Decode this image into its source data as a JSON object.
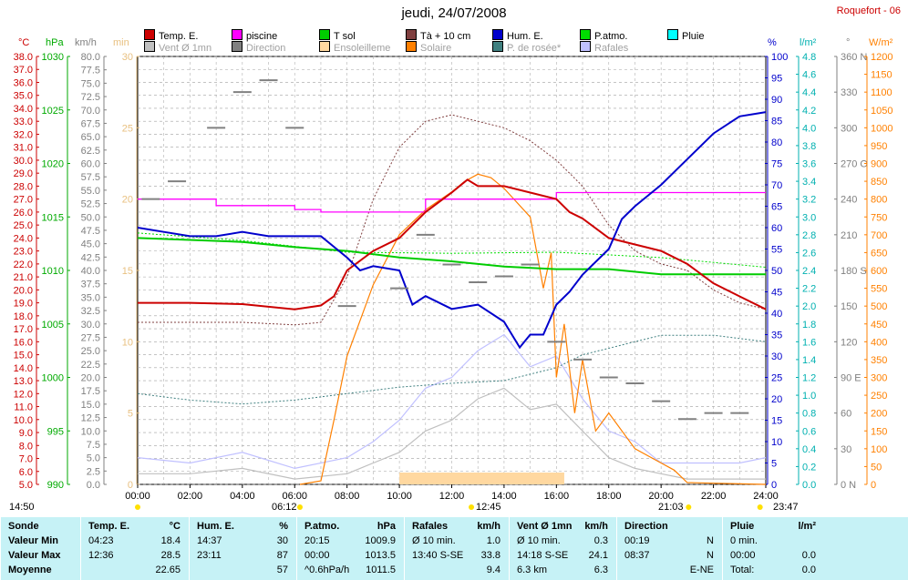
{
  "header": {
    "title": "jeudi, 24/07/2008",
    "station": "Roquefort - 06"
  },
  "legend": [
    {
      "label": "Temp. E.",
      "color": "#cc0000"
    },
    {
      "label": "piscine",
      "color": "#ff00ff"
    },
    {
      "label": "T sol",
      "color": "#00cc00"
    },
    {
      "label": "Tà + 10 cm",
      "color": "#804040"
    },
    {
      "label": "Hum. E.",
      "color": "#0000cc"
    },
    {
      "label": "P.atmo.",
      "color": "#00dd00"
    },
    {
      "label": "Pluie",
      "color": "#00ffff"
    },
    {
      "label": "Vent Ø 1mn",
      "color": "#c0c0c0"
    },
    {
      "label": "Direction",
      "color": "#808080"
    },
    {
      "label": "Ensoleilleme",
      "color": "#ffd8a0"
    },
    {
      "label": "Solaire",
      "color": "#ff8000"
    },
    {
      "label": "P. de rosée*",
      "color": "#408080"
    },
    {
      "label": "Rafales",
      "color": "#c0c0ff"
    }
  ],
  "units": {
    "temp": "°C",
    "press": "hPa",
    "wind": "km/h",
    "sun": "min",
    "hum": "%",
    "rain": "l/m²",
    "dir": "°",
    "solar": "W/m²"
  },
  "axes": {
    "temp": [
      "38.0",
      "37.0",
      "36.0",
      "35.0",
      "34.0",
      "33.0",
      "32.0",
      "31.0",
      "30.0",
      "29.0",
      "28.0",
      "27.0",
      "26.0",
      "25.0",
      "24.0",
      "23.0",
      "22.0",
      "21.0",
      "20.0",
      "19.0",
      "18.0",
      "17.0",
      "16.0",
      "15.0",
      "14.0",
      "13.0",
      "12.0",
      "11.0",
      "10.0",
      "9.0",
      "8.0",
      "7.0",
      "6.0",
      "5.0"
    ],
    "press": [
      "1030",
      "1025",
      "1020",
      "1015",
      "1010",
      "1005",
      "1000",
      "995",
      "990"
    ],
    "wind": [
      "80.0",
      "77.5",
      "75.0",
      "72.5",
      "70.0",
      "67.5",
      "65.0",
      "62.5",
      "60.0",
      "57.5",
      "55.0",
      "52.5",
      "50.0",
      "47.5",
      "45.0",
      "42.5",
      "40.0",
      "37.5",
      "35.0",
      "32.5",
      "30.0",
      "27.5",
      "25.0",
      "22.5",
      "20.0",
      "17.5",
      "15.0",
      "12.5",
      "10.0",
      "7.5",
      "5.0",
      "2.5",
      "0.0"
    ],
    "sun": [
      "30",
      "25",
      "20",
      "15",
      "10",
      "5",
      "0"
    ],
    "hum": [
      "100",
      "95",
      "90",
      "85",
      "80",
      "75",
      "70",
      "65",
      "60",
      "55",
      "50",
      "45",
      "40",
      "35",
      "30",
      "25",
      "20",
      "15",
      "10",
      "5",
      "0"
    ],
    "rain": [
      "4.8",
      "4.6",
      "4.4",
      "4.2",
      "4.0",
      "3.8",
      "3.6",
      "3.4",
      "3.2",
      "3.0",
      "2.8",
      "2.6",
      "2.4",
      "2.2",
      "2.0",
      "1.8",
      "1.6",
      "1.4",
      "1.2",
      "1.0",
      "0.8",
      "0.6",
      "0.4",
      "0.2",
      "0.0"
    ],
    "dir": [
      "360 N",
      "330",
      "300",
      "270 O",
      "240",
      "210",
      "180 S",
      "150",
      "120",
      "90 E",
      "60",
      "30",
      "0 N"
    ],
    "solar": [
      "1200",
      "1150",
      "1100",
      "1050",
      "1000",
      "950",
      "900",
      "850",
      "800",
      "750",
      "700",
      "650",
      "600",
      "550",
      "500",
      "450",
      "400",
      "350",
      "300",
      "250",
      "200",
      "150",
      "100",
      "50",
      "0"
    ],
    "time": [
      "00:00",
      "02:00",
      "04:00",
      "06:00",
      "08:00",
      "10:00",
      "12:00",
      "14:00",
      "16:00",
      "18:00",
      "20:00",
      "22:00",
      "24:00"
    ]
  },
  "markers": {
    "sunrise": "06:12",
    "sunset": "21:03",
    "noon": "12:45",
    "left_time": "14:50",
    "right_time": "23:47"
  },
  "chart_data": {
    "type": "line",
    "title": "jeudi, 24/07/2008",
    "x_range": [
      "00:00",
      "24:00"
    ],
    "series": [
      {
        "name": "Temp. E.",
        "unit": "°C",
        "x": [
          0,
          2,
          4,
          6,
          7,
          7.5,
          8,
          9,
          10,
          11,
          12,
          12.6,
          13,
          14,
          15,
          16,
          16.5,
          17,
          18,
          19,
          20,
          21,
          22,
          23,
          24
        ],
        "values": [
          19.0,
          19.0,
          18.9,
          18.5,
          18.8,
          19.5,
          21.5,
          23.0,
          24.0,
          26.0,
          27.5,
          28.5,
          28.0,
          28.0,
          27.5,
          27.0,
          26.0,
          25.5,
          24.0,
          23.5,
          23.0,
          22.0,
          20.5,
          19.5,
          18.5
        ]
      },
      {
        "name": "Hum. E.",
        "unit": "%",
        "x": [
          0,
          1,
          2,
          3,
          4,
          5,
          6,
          7,
          8,
          8.5,
          9,
          10,
          10.5,
          11,
          12,
          13,
          14,
          14.6,
          15,
          15.5,
          16,
          16.5,
          17,
          18,
          18.5,
          19,
          20,
          21,
          22,
          23,
          24
        ],
        "values": [
          60,
          59,
          58,
          58,
          59,
          58,
          58,
          58,
          53,
          50,
          51,
          50,
          42,
          44,
          41,
          42,
          38,
          32,
          35,
          35,
          42,
          45,
          49,
          55,
          62,
          65,
          70,
          76,
          82,
          86,
          87
        ]
      },
      {
        "name": "T sol",
        "unit": "°C",
        "x": [
          0,
          4,
          6,
          8,
          10,
          12,
          14,
          16,
          18,
          20,
          22,
          24
        ],
        "values": [
          24.0,
          23.7,
          23.3,
          23.0,
          22.5,
          22.2,
          21.8,
          21.6,
          21.6,
          21.2,
          21.2,
          21.2
        ]
      },
      {
        "name": "P.atmo.",
        "unit": "hPa",
        "x": [
          0,
          4,
          8,
          12,
          16,
          20,
          24
        ],
        "values": [
          1013.5,
          1012.8,
          1011.7,
          1011.6,
          1011.7,
          1011.2,
          1010.3
        ]
      },
      {
        "name": "piscine",
        "unit": "°C",
        "x": [
          0,
          2,
          3,
          6,
          7,
          10,
          11,
          12,
          15,
          16,
          20,
          24
        ],
        "values": [
          27.0,
          27.0,
          26.5,
          26.2,
          26.0,
          26.0,
          27.0,
          27.0,
          27.0,
          27.5,
          27.5,
          27.5
        ]
      },
      {
        "name": "Tà + 10 cm",
        "unit": "°C",
        "x": [
          0,
          4,
          6,
          7,
          8,
          9,
          10,
          11,
          12,
          13,
          14,
          15,
          16,
          17,
          18,
          19,
          20,
          21,
          22,
          23,
          24
        ],
        "values": [
          17.5,
          17.5,
          17.3,
          17.5,
          21.0,
          27.0,
          31.0,
          33.0,
          33.5,
          33.0,
          32.5,
          31.5,
          30.0,
          28.0,
          25.0,
          23.0,
          22.0,
          21.5,
          20.0,
          19.0,
          18.5
        ]
      },
      {
        "name": "P. de rosée*",
        "unit": "°C",
        "x": [
          0,
          2,
          4,
          6,
          8,
          10,
          12,
          14,
          16,
          17,
          18,
          19,
          20,
          22,
          24
        ],
        "values": [
          12.0,
          11.5,
          11.2,
          11.5,
          12.0,
          12.5,
          12.8,
          13.0,
          14.0,
          15.0,
          15.5,
          16.0,
          16.5,
          16.5,
          16.0
        ]
      },
      {
        "name": "Solaire",
        "unit": "W/m²",
        "x": [
          6.2,
          7,
          7.5,
          8,
          9,
          10,
          11,
          12,
          12.5,
          13,
          13.5,
          14,
          15,
          15.5,
          15.8,
          16,
          16.3,
          16.7,
          17,
          17.5,
          18,
          19,
          20,
          20.5,
          21,
          24
        ],
        "values": [
          0,
          10,
          180,
          360,
          560,
          700,
          770,
          820,
          850,
          870,
          860,
          830,
          750,
          550,
          650,
          300,
          450,
          200,
          350,
          150,
          200,
          100,
          60,
          40,
          5,
          0
        ]
      },
      {
        "name": "Rafales",
        "unit": "km/h",
        "x": [
          0,
          2,
          4,
          6,
          8,
          9,
          10,
          11,
          12,
          13,
          14,
          15,
          16,
          17,
          18,
          19,
          20,
          21,
          22,
          23,
          24
        ],
        "values": [
          5,
          4,
          6,
          3,
          5,
          8,
          12,
          18,
          20,
          25,
          28,
          22,
          24,
          16,
          10,
          8,
          4,
          4,
          4,
          4,
          5
        ]
      },
      {
        "name": "Vent Ø 1mn",
        "unit": "km/h",
        "x": [
          0,
          2,
          4,
          6,
          8,
          9,
          10,
          11,
          12,
          13,
          14,
          15,
          16,
          17,
          18,
          19,
          20,
          21,
          22,
          23,
          24
        ],
        "values": [
          2,
          2,
          3,
          1,
          2,
          4,
          6,
          10,
          12,
          16,
          18,
          14,
          15,
          10,
          5,
          3,
          2,
          1,
          1,
          1,
          1
        ]
      },
      {
        "name": "Direction",
        "unit": "°",
        "x": [
          0.5,
          1.5,
          3,
          4,
          5,
          6,
          8,
          10,
          11,
          12,
          13,
          14,
          15,
          16,
          17,
          18,
          19,
          20,
          21,
          22,
          23
        ],
        "values": [
          240,
          255,
          300,
          330,
          340,
          300,
          150,
          165,
          210,
          185,
          170,
          175,
          185,
          120,
          105,
          90,
          85,
          70,
          55,
          60,
          60
        ]
      }
    ]
  },
  "footer": {
    "columns": [
      {
        "header": [
          "Sonde",
          ""
        ],
        "rows": [
          [
            "Valeur Min",
            ""
          ],
          [
            "Valeur Max",
            ""
          ],
          [
            "Moyenne",
            ""
          ]
        ]
      },
      {
        "header": [
          "Temp. E.",
          "°C"
        ],
        "rows": [
          [
            "04:23",
            "18.4"
          ],
          [
            "12:36",
            "28.5"
          ],
          [
            "",
            "22.65"
          ]
        ]
      },
      {
        "header": [
          "Hum. E.",
          "%"
        ],
        "rows": [
          [
            "14:37",
            "30"
          ],
          [
            "23:11",
            "87"
          ],
          [
            "",
            "57"
          ]
        ]
      },
      {
        "header": [
          "P.atmo.",
          "hPa"
        ],
        "rows": [
          [
            "20:15",
            "1009.9"
          ],
          [
            "00:00",
            "1013.5"
          ],
          [
            "^0.6hPa/h",
            "1011.5"
          ]
        ]
      },
      {
        "header": [
          "Rafales",
          "km/h"
        ],
        "rows": [
          [
            "Ø 10 min.",
            "1.0"
          ],
          [
            "13:40   S-SE",
            "33.8"
          ],
          [
            "",
            "9.4"
          ]
        ]
      },
      {
        "header": [
          "Vent Ø 1mn",
          "km/h"
        ],
        "rows": [
          [
            "Ø 10 min.",
            "0.3"
          ],
          [
            "14:18   S-SE",
            "24.1"
          ],
          [
            "6.3 km",
            "6.3"
          ]
        ]
      },
      {
        "header": [
          "Direction",
          ""
        ],
        "rows": [
          [
            "00:19",
            "N"
          ],
          [
            "08:37",
            "N"
          ],
          [
            "",
            "E-NE"
          ]
        ]
      },
      {
        "header": [
          "Pluie",
          "l/m²"
        ],
        "rows": [
          [
            "0 min.",
            ""
          ],
          [
            "00:00",
            "0.0"
          ],
          [
            "Total:",
            "0.0"
          ]
        ]
      }
    ]
  }
}
